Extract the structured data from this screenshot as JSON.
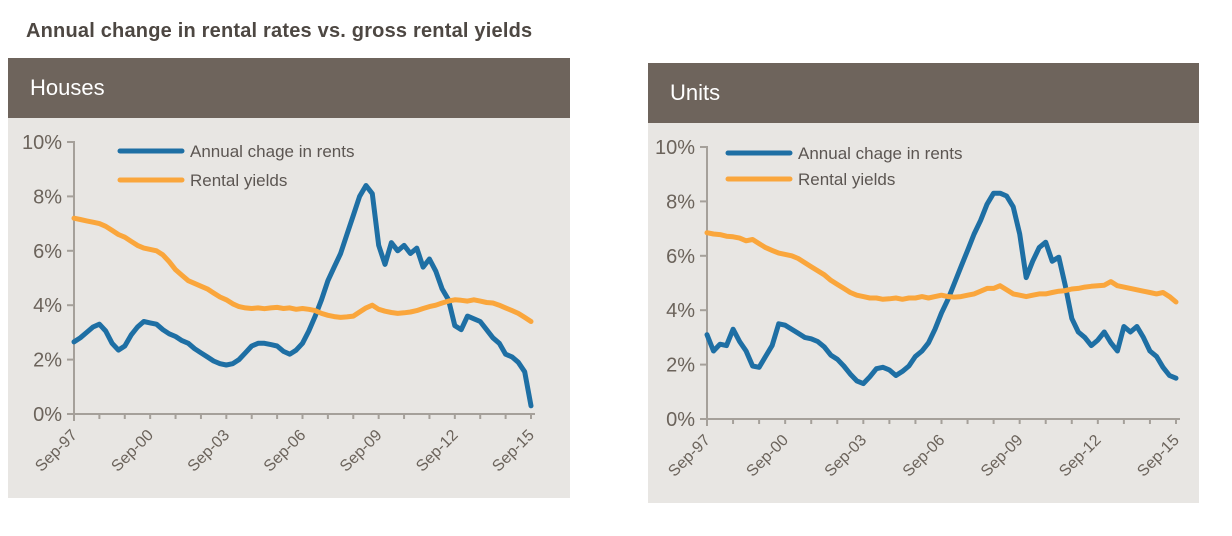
{
  "page": {
    "title": "Annual change in rental rates vs. gross rental yields"
  },
  "colors": {
    "title_text": "#4D4742",
    "panel_header_bg": "#6E645C",
    "panel_header_text": "#FFFFFF",
    "panel_bg": "#E8E6E3",
    "axis": "#A5A09A",
    "tick_label": "#6B635B",
    "legend_text": "#5C5652",
    "rents_line": "#1E6FA4",
    "yields_line": "#FAA63C"
  },
  "chart_data": [
    {
      "type": "line",
      "panel_title": "Houses",
      "x": {
        "start": 1997.75,
        "step": 0.25,
        "tick_every_years": 1,
        "label_years": [
          1997,
          2000,
          2003,
          2006,
          2009,
          2012,
          2015
        ],
        "ticklabels": [
          "Sep-97",
          "Sep-00",
          "Sep-03",
          "Sep-06",
          "Sep-09",
          "Sep-12",
          "Sep-15"
        ]
      },
      "y": {
        "min": 0,
        "max": 10,
        "tick_step": 2,
        "ticklabels": [
          "0%",
          "2%",
          "4%",
          "6%",
          "8%",
          "10%"
        ]
      },
      "legend_position": "top-left-inside",
      "grid": false,
      "series": [
        {
          "name": "Annual chage in rents",
          "color_key": "rents_line",
          "values": [
            2.65,
            2.8,
            3.0,
            3.2,
            3.3,
            3.05,
            2.6,
            2.35,
            2.5,
            2.9,
            3.2,
            3.4,
            3.35,
            3.3,
            3.1,
            2.95,
            2.85,
            2.7,
            2.6,
            2.4,
            2.25,
            2.1,
            1.95,
            1.85,
            1.8,
            1.85,
            2.0,
            2.25,
            2.5,
            2.6,
            2.6,
            2.55,
            2.5,
            2.3,
            2.2,
            2.35,
            2.6,
            3.05,
            3.6,
            4.2,
            4.9,
            5.4,
            5.9,
            6.6,
            7.3,
            8.0,
            8.4,
            8.1,
            6.2,
            5.5,
            6.3,
            6.0,
            6.2,
            5.9,
            6.1,
            5.4,
            5.7,
            5.25,
            4.6,
            4.2,
            3.25,
            3.1,
            3.6,
            3.5,
            3.4,
            3.1,
            2.8,
            2.6,
            2.2,
            2.1,
            1.9,
            1.55,
            0.3
          ]
        },
        {
          "name": "Rental yields",
          "color_key": "yields_line",
          "values": [
            7.2,
            7.15,
            7.1,
            7.05,
            7.0,
            6.9,
            6.75,
            6.6,
            6.5,
            6.35,
            6.2,
            6.1,
            6.05,
            6.0,
            5.85,
            5.6,
            5.3,
            5.1,
            4.9,
            4.8,
            4.7,
            4.6,
            4.45,
            4.3,
            4.2,
            4.05,
            3.95,
            3.9,
            3.88,
            3.9,
            3.87,
            3.9,
            3.92,
            3.88,
            3.9,
            3.85,
            3.88,
            3.85,
            3.8,
            3.7,
            3.63,
            3.58,
            3.55,
            3.57,
            3.6,
            3.75,
            3.9,
            4.0,
            3.85,
            3.78,
            3.73,
            3.7,
            3.72,
            3.75,
            3.8,
            3.88,
            3.95,
            4.0,
            4.08,
            4.15,
            4.2,
            4.18,
            4.15,
            4.2,
            4.15,
            4.1,
            4.08,
            4.0,
            3.9,
            3.8,
            3.7,
            3.55,
            3.4
          ]
        }
      ]
    },
    {
      "type": "line",
      "panel_title": "Units",
      "x": {
        "start": 1997.75,
        "step": 0.25,
        "tick_every_years": 1,
        "label_years": [
          1997,
          2000,
          2003,
          2006,
          2009,
          2012,
          2015
        ],
        "ticklabels": [
          "Sep-97",
          "Sep-00",
          "Sep-03",
          "Sep-06",
          "Sep-09",
          "Sep-12",
          "Sep-15"
        ]
      },
      "y": {
        "min": 0,
        "max": 10,
        "tick_step": 2,
        "ticklabels": [
          "0%",
          "2%",
          "4%",
          "6%",
          "8%",
          "10%"
        ]
      },
      "legend_position": "top-left-inside",
      "grid": false,
      "series": [
        {
          "name": "Annual chage in rents",
          "color_key": "rents_line",
          "values": [
            3.1,
            2.5,
            2.75,
            2.7,
            3.3,
            2.85,
            2.5,
            1.95,
            1.9,
            2.3,
            2.7,
            3.5,
            3.45,
            3.3,
            3.15,
            3.0,
            2.95,
            2.85,
            2.65,
            2.35,
            2.2,
            1.95,
            1.65,
            1.4,
            1.3,
            1.55,
            1.85,
            1.9,
            1.8,
            1.6,
            1.75,
            1.95,
            2.3,
            2.5,
            2.8,
            3.3,
            3.9,
            4.4,
            5.0,
            5.6,
            6.2,
            6.8,
            7.3,
            7.9,
            8.3,
            8.3,
            8.2,
            7.8,
            6.8,
            5.2,
            5.8,
            6.3,
            6.5,
            5.8,
            5.95,
            4.9,
            3.7,
            3.2,
            3.0,
            2.7,
            2.9,
            3.2,
            2.8,
            2.5,
            3.4,
            3.2,
            3.4,
            3.0,
            2.5,
            2.3,
            1.9,
            1.6,
            1.5
          ]
        },
        {
          "name": "Rental yields",
          "color_key": "yields_line",
          "values": [
            6.85,
            6.8,
            6.78,
            6.72,
            6.7,
            6.65,
            6.55,
            6.6,
            6.45,
            6.3,
            6.2,
            6.1,
            6.05,
            6.0,
            5.9,
            5.75,
            5.6,
            5.45,
            5.3,
            5.1,
            4.95,
            4.8,
            4.65,
            4.55,
            4.5,
            4.45,
            4.45,
            4.4,
            4.42,
            4.45,
            4.4,
            4.45,
            4.45,
            4.5,
            4.45,
            4.5,
            4.55,
            4.5,
            4.48,
            4.5,
            4.55,
            4.6,
            4.7,
            4.8,
            4.8,
            4.9,
            4.75,
            4.6,
            4.55,
            4.5,
            4.55,
            4.6,
            4.6,
            4.65,
            4.7,
            4.72,
            4.78,
            4.8,
            4.85,
            4.88,
            4.9,
            4.92,
            5.05,
            4.9,
            4.85,
            4.8,
            4.75,
            4.7,
            4.65,
            4.6,
            4.65,
            4.5,
            4.3
          ]
        }
      ]
    }
  ]
}
